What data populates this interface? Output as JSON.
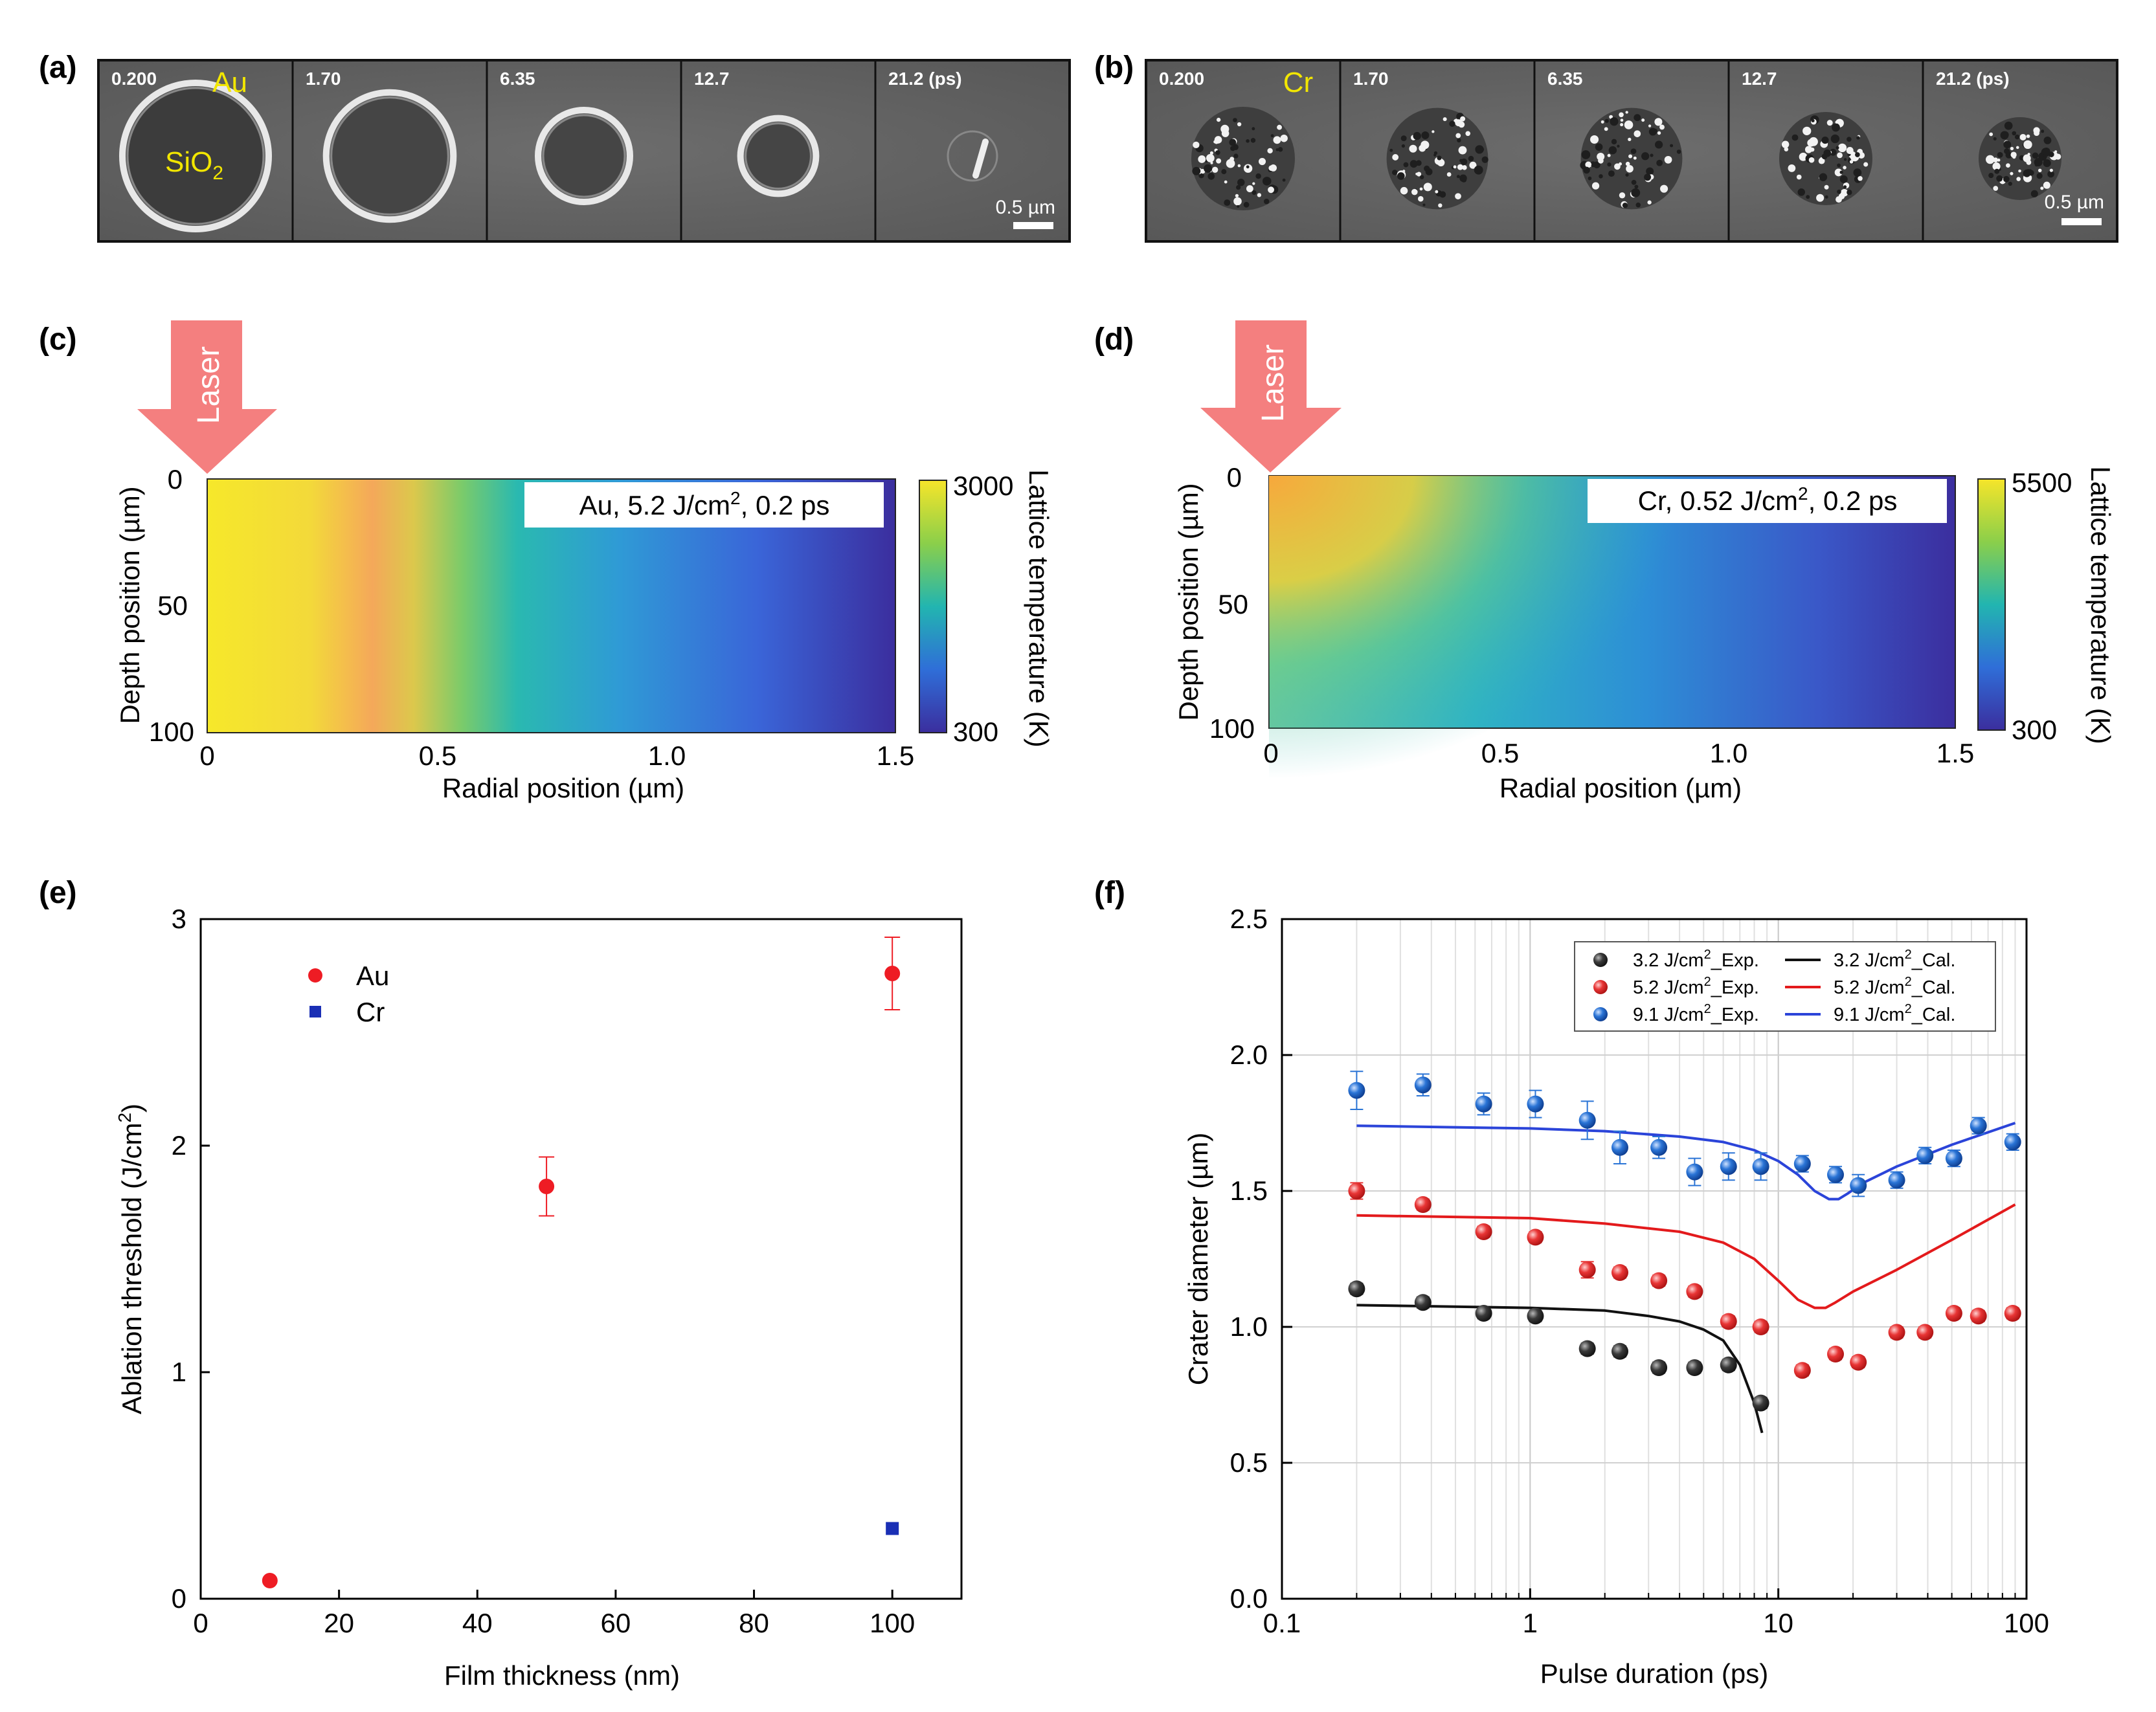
{
  "panels": {
    "a": {
      "label": "(a)",
      "material": "Au",
      "substrate": "SiO",
      "substrate_sub": "2",
      "times": [
        "0.200",
        "1.70",
        "6.35",
        "12.7",
        "21.2 (ps)"
      ],
      "scale_bar": "0.5 µm",
      "crater_radius_fraction": [
        1.0,
        0.86,
        0.6,
        0.48,
        0.1
      ]
    },
    "b": {
      "label": "(b)",
      "material": "Cr",
      "times": [
        "0.200",
        "1.70",
        "6.35",
        "12.7",
        "21.2 (ps)"
      ],
      "scale_bar": "0.5 µm"
    },
    "c": {
      "label": "(c)",
      "laser_label": "Laser",
      "annotation_main": "Au, 5.2 J/cm",
      "annotation_sup": "2",
      "annotation_tail": ", 0.2 ps",
      "xlabel": "Radial position (µm)",
      "ylabel": "Depth position (µm)",
      "x_ticks": [
        "0",
        "0.5",
        "1.0",
        "1.5"
      ],
      "y_ticks": [
        "0",
        "50",
        "100"
      ],
      "colorbar_max": "3000",
      "colorbar_min": "300",
      "colorbar_label": "Lattice temperature (K)"
    },
    "d": {
      "label": "(d)",
      "laser_label": "Laser",
      "annotation_main": "Cr, 0.52 J/cm",
      "annotation_sup": "2",
      "annotation_tail": ", 0.2 ps",
      "xlabel": "Radial position (µm)",
      "ylabel": "Depth position (µm)",
      "x_ticks": [
        "0",
        "0.5",
        "1.0",
        "1.5"
      ],
      "y_ticks": [
        "0",
        "50",
        "100"
      ],
      "colorbar_max": "5500",
      "colorbar_min": "300",
      "colorbar_label": "Lattice temperature (K)"
    },
    "e": {
      "label": "(e)"
    },
    "f": {
      "label": "(f)"
    }
  },
  "colors": {
    "au": "#ee1c24",
    "cr": "#1a2fb5",
    "exp_black": "#3a3a3a",
    "exp_red": "#e83535",
    "exp_blue": "#2a74d6",
    "cal_black": "#111111",
    "cal_red": "#e31a1c",
    "cal_blue": "#2b44d9",
    "laser": "#f47f7f",
    "viridis": [
      "#440154",
      "#3b528b",
      "#21918c",
      "#5ec962",
      "#fde725"
    ]
  },
  "chart_data": [
    {
      "panel": "e",
      "type": "scatter",
      "xlabel": "Film thickness (nm)",
      "ylabel_main": "Ablation threshold (J/cm",
      "ylabel_sup": "2",
      "ylabel_tail": ")",
      "xlim": [
        0,
        110
      ],
      "ylim": [
        0,
        3
      ],
      "x_ticks": [
        0,
        20,
        40,
        60,
        80,
        100
      ],
      "y_ticks": [
        0,
        1,
        2,
        3
      ],
      "legend_position": "top-left",
      "series": [
        {
          "name": "Au",
          "marker": "circle",
          "x": [
            10,
            50,
            100
          ],
          "y": [
            0.08,
            1.82,
            2.76
          ],
          "err": [
            0,
            0.13,
            0.16
          ]
        },
        {
          "name": "Cr",
          "marker": "square",
          "x": [
            100
          ],
          "y": [
            0.31
          ],
          "err": [
            0
          ]
        }
      ]
    },
    {
      "panel": "f",
      "type": "scatter",
      "xscale": "log",
      "xlabel": "Pulse duration (ps)",
      "ylabel": "Crater diameter (µm)",
      "xlim": [
        0.1,
        100
      ],
      "ylim": [
        0.0,
        2.5
      ],
      "x_ticks": [
        "0.1",
        "1",
        "10",
        "100"
      ],
      "y_ticks": [
        "0.0",
        "0.5",
        "1.0",
        "1.5",
        "2.0",
        "2.5"
      ],
      "grid": true,
      "legend_position": "top-right",
      "legend": [
        {
          "sym": "sphere",
          "color": "exp_black",
          "main": "3.2 J/cm",
          "sup": "2",
          "tail": "_Exp."
        },
        {
          "sym": "line",
          "color": "cal_black",
          "main": "3.2 J/cm",
          "sup": "2",
          "tail": "_Cal."
        },
        {
          "sym": "sphere",
          "color": "exp_red",
          "main": "5.2 J/cm",
          "sup": "2",
          "tail": "_Exp."
        },
        {
          "sym": "line",
          "color": "cal_red",
          "main": "5.2 J/cm",
          "sup": "2",
          "tail": "_Cal."
        },
        {
          "sym": "sphere",
          "color": "exp_blue",
          "main": "9.1 J/cm",
          "sup": "2",
          "tail": "_Exp."
        },
        {
          "sym": "line",
          "color": "cal_blue",
          "main": "9.1 J/cm",
          "sup": "2",
          "tail": "_Cal."
        }
      ],
      "experiments": [
        {
          "color": "exp_black",
          "x": [
            0.2,
            0.37,
            0.65,
            1.05,
            1.7,
            2.3,
            3.3,
            4.6,
            6.3,
            8.5
          ],
          "y": [
            1.14,
            1.09,
            1.05,
            1.04,
            0.92,
            0.91,
            0.85,
            0.85,
            0.86,
            0.72
          ],
          "err": [
            0.02,
            0.02,
            0.02,
            0.02,
            0.02,
            0.02,
            0.02,
            0.02,
            0.02,
            0.02
          ]
        },
        {
          "color": "exp_red",
          "x": [
            0.2,
            0.37,
            0.65,
            1.05,
            1.7,
            2.3,
            3.3,
            4.6,
            6.3,
            8.5,
            12.5,
            17,
            21,
            30,
            39,
            51,
            64,
            88
          ],
          "y": [
            1.5,
            1.45,
            1.35,
            1.33,
            1.21,
            1.2,
            1.17,
            1.13,
            1.02,
            1.0,
            0.84,
            0.9,
            0.87,
            0.98,
            0.98,
            1.05,
            1.04,
            1.05
          ],
          "err": [
            0.03,
            0.02,
            0.02,
            0.02,
            0.03,
            0.02,
            0.02,
            0.02,
            0.02,
            0.02,
            0.02,
            0.02,
            0.02,
            0.02,
            0.02,
            0.02,
            0.02,
            0.02
          ]
        },
        {
          "color": "exp_blue",
          "x": [
            0.2,
            0.37,
            0.65,
            1.05,
            1.7,
            2.3,
            3.3,
            4.6,
            6.3,
            8.5,
            12.5,
            17,
            21,
            30,
            39,
            51,
            64,
            88
          ],
          "y": [
            1.87,
            1.89,
            1.82,
            1.82,
            1.76,
            1.66,
            1.66,
            1.57,
            1.59,
            1.59,
            1.6,
            1.56,
            1.52,
            1.54,
            1.63,
            1.62,
            1.74,
            1.68
          ],
          "err": [
            0.07,
            0.04,
            0.04,
            0.05,
            0.07,
            0.06,
            0.04,
            0.05,
            0.05,
            0.05,
            0.03,
            0.03,
            0.04,
            0.03,
            0.03,
            0.03,
            0.03,
            0.03
          ]
        }
      ],
      "calculations": [
        {
          "color": "cal_black",
          "x": [
            0.2,
            1,
            2,
            3,
            4,
            5,
            6,
            7,
            8,
            8.6
          ],
          "y": [
            1.08,
            1.07,
            1.06,
            1.04,
            1.02,
            0.99,
            0.95,
            0.86,
            0.72,
            0.61
          ]
        },
        {
          "color": "cal_red",
          "x": [
            0.2,
            1,
            2,
            4,
            6,
            8,
            10,
            12,
            14,
            15.5,
            17,
            20,
            30,
            50,
            90
          ],
          "y": [
            1.41,
            1.4,
            1.38,
            1.35,
            1.31,
            1.25,
            1.17,
            1.1,
            1.07,
            1.07,
            1.09,
            1.13,
            1.21,
            1.32,
            1.45
          ]
        },
        {
          "color": "cal_blue",
          "x": [
            0.2,
            1,
            2,
            4,
            6,
            8,
            10,
            12,
            14,
            16,
            17.5,
            19,
            22,
            30,
            50,
            90
          ],
          "y": [
            1.74,
            1.73,
            1.72,
            1.7,
            1.68,
            1.65,
            1.61,
            1.56,
            1.5,
            1.47,
            1.47,
            1.49,
            1.53,
            1.59,
            1.67,
            1.75
          ]
        }
      ]
    }
  ]
}
